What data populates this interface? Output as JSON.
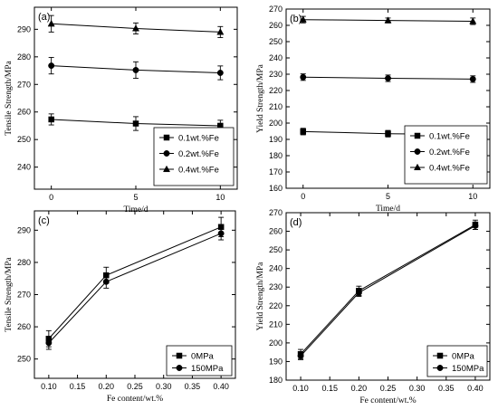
{
  "chart_data": [
    {
      "panel_label": "(a)",
      "type": "line",
      "xlabel": "Time/d",
      "ylabel": "Tensile Strength/MPa",
      "xlim": [
        -1,
        11
      ],
      "ylim": [
        232,
        298
      ],
      "xticks": [
        0,
        5,
        10
      ],
      "yticks": [
        240,
        250,
        260,
        270,
        280,
        290
      ],
      "x": [
        0,
        5,
        10
      ],
      "series": [
        {
          "name": "0.1wt.%Fe",
          "marker": "square",
          "values": [
            257.3,
            255.8,
            255.0
          ],
          "errors": [
            2.0,
            2.5,
            2.0
          ]
        },
        {
          "name": "0.2wt.%Fe",
          "marker": "circle",
          "values": [
            276.8,
            275.2,
            274.2
          ],
          "errors": [
            3.0,
            3.0,
            2.5
          ]
        },
        {
          "name": "0.4wt.%Fe",
          "marker": "triangle",
          "values": [
            292.0,
            290.3,
            289.0
          ],
          "errors": [
            3.0,
            2.0,
            2.0
          ]
        }
      ],
      "legend": "bottom-right"
    },
    {
      "panel_label": "(b)",
      "type": "line",
      "xlabel": "Time/d",
      "ylabel": "Yield Strength/MPa",
      "xlim": [
        -1,
        11
      ],
      "ylim": [
        160,
        270
      ],
      "xticks": [
        0,
        5,
        10
      ],
      "yticks": [
        160,
        170,
        180,
        190,
        200,
        210,
        220,
        230,
        240,
        250,
        260,
        270
      ],
      "x": [
        0,
        5,
        10
      ],
      "series": [
        {
          "name": "0.1wt.%Fe",
          "marker": "square",
          "values": [
            194.8,
            193.5,
            193.0
          ],
          "errors": [
            2.0,
            2.0,
            2.0
          ]
        },
        {
          "name": "0.2wt.%Fe",
          "marker": "circle",
          "values": [
            228.2,
            227.5,
            227.0
          ],
          "errors": [
            2.0,
            2.0,
            2.0
          ]
        },
        {
          "name": "0.4wt.%Fe",
          "marker": "triangle",
          "values": [
            263.5,
            263.0,
            262.5
          ],
          "errors": [
            2.0,
            1.5,
            2.0
          ]
        }
      ],
      "legend": "bottom-right"
    },
    {
      "panel_label": "(c)",
      "type": "line",
      "xlabel": "Fe content/wt.%",
      "ylabel": "Tensile Strength/MPa",
      "xlim": [
        0.075,
        0.425
      ],
      "ylim": [
        244,
        296
      ],
      "xticks": [
        0.1,
        0.15,
        0.2,
        0.25,
        0.3,
        0.35,
        0.4
      ],
      "xticklabels": [
        "0.10",
        "0.15",
        "0.20",
        "0.25",
        "0.30",
        "0.35",
        "0.40"
      ],
      "yticks": [
        250,
        260,
        270,
        280,
        290
      ],
      "x": [
        0.1,
        0.2,
        0.4
      ],
      "series": [
        {
          "name": "0MPa",
          "marker": "square",
          "values": [
            256.3,
            276.0,
            291.0
          ],
          "errors": [
            2.5,
            2.5,
            3.0
          ]
        },
        {
          "name": "150MPa",
          "marker": "circle",
          "values": [
            255.0,
            274.0,
            289.0
          ],
          "errors": [
            2.0,
            2.0,
            2.0
          ]
        }
      ],
      "legend": "bottom-right"
    },
    {
      "panel_label": "(d)",
      "type": "line",
      "xlabel": "Fe content/wt.%",
      "ylabel": "Yield Strength/MPa",
      "xlim": [
        0.075,
        0.425
      ],
      "ylim": [
        180,
        270
      ],
      "xticks": [
        0.1,
        0.15,
        0.2,
        0.25,
        0.3,
        0.35,
        0.4
      ],
      "xticklabels": [
        "0.10",
        "0.15",
        "0.20",
        "0.25",
        "0.30",
        "0.35",
        "0.40"
      ],
      "yticks": [
        180,
        190,
        200,
        210,
        220,
        230,
        240,
        250,
        260,
        270
      ],
      "x": [
        0.1,
        0.2,
        0.4
      ],
      "series": [
        {
          "name": "0MPa",
          "marker": "square",
          "values": [
            194.0,
            228.0,
            263.5
          ],
          "errors": [
            2.5,
            2.5,
            2.5
          ]
        },
        {
          "name": "150MPa",
          "marker": "circle",
          "values": [
            193.0,
            227.0,
            263.0
          ],
          "errors": [
            2.0,
            2.0,
            2.0
          ]
        }
      ],
      "legend": "bottom-right"
    }
  ]
}
